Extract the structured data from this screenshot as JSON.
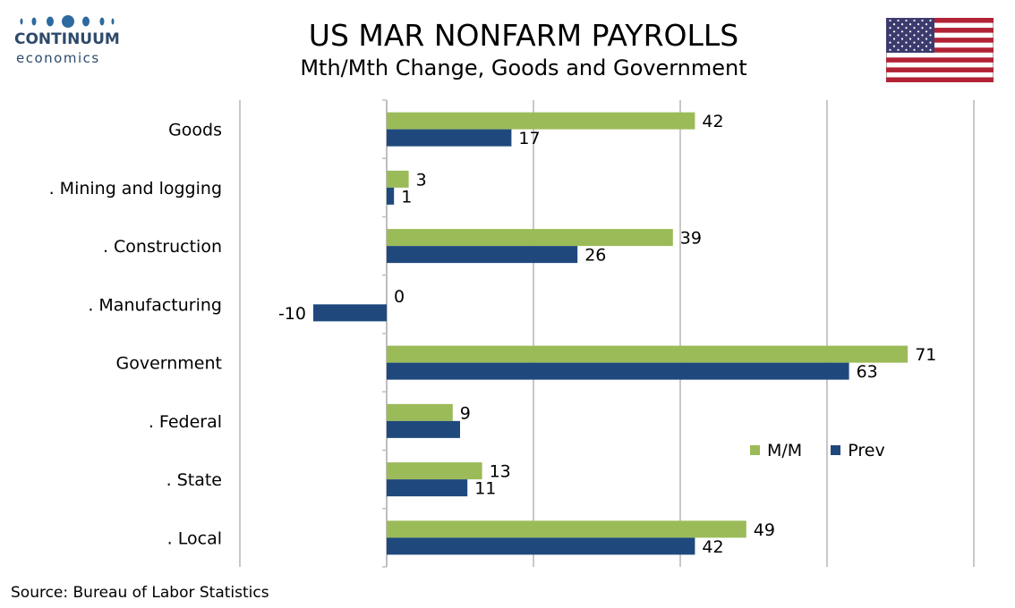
{
  "logo": {
    "brand": "CONTINUUM",
    "sub": "economics"
  },
  "title": "US MAR NONFARM PAYROLLS",
  "subtitle": "Mth/Mth Change, Goods and Government",
  "source": "Source: Bureau of Labor Statistics",
  "colors": {
    "mm": "#9bbb59",
    "prev": "#1f497d",
    "grid": "#c8c8c8",
    "flag_red": "#b22234",
    "flag_blue": "#3c3b6e"
  },
  "icons": {
    "flag": "us-flag-icon",
    "logo": "continuum-logo-icon"
  },
  "chart_data": {
    "type": "bar",
    "orientation": "horizontal",
    "categories": [
      "Goods",
      ". Mining and logging",
      ". Construction",
      ". Manufacturing",
      "Government",
      ". Federal",
      ". State",
      ". Local"
    ],
    "series": [
      {
        "name": "M/M",
        "values": [
          42,
          3,
          39,
          0,
          71,
          9,
          13,
          49
        ],
        "labels": [
          "42",
          "3",
          "39",
          "0",
          "71",
          "9",
          "13",
          "49"
        ]
      },
      {
        "name": "Prev",
        "values": [
          17,
          1,
          26,
          -10,
          63,
          10,
          11,
          42
        ],
        "labels": [
          "17",
          "1",
          "26",
          "-10",
          "63",
          "",
          "11",
          "42"
        ]
      }
    ],
    "xlim": [
      -20,
      80
    ],
    "grid": true,
    "legend": "bottom-right"
  }
}
